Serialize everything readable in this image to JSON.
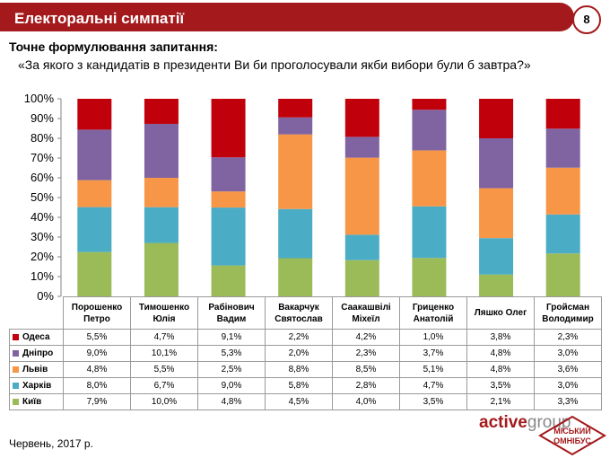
{
  "header": {
    "title": "Електоральні симпатії",
    "page_number": "8"
  },
  "question": {
    "label": "Точне формулювання запитання:",
    "text": "«За якого з кандидатів в президенти Ви би проголосували якби вибори були б завтра?»"
  },
  "chart_data": {
    "type": "bar",
    "stacked": "percent",
    "categories": [
      [
        "Порошенко",
        "Петро"
      ],
      [
        "Тимошенко",
        "Юлія"
      ],
      [
        "Рабінович",
        "Вадим"
      ],
      [
        "Вакарчук",
        "Святослав"
      ],
      [
        "Саакашвілі",
        "Міхеїл"
      ],
      [
        "Гриценко",
        "Анатолій"
      ],
      [
        "Ляшко Олег"
      ],
      [
        "Гройсман",
        "Володимир"
      ]
    ],
    "yticks": [
      "0%",
      "10%",
      "20%",
      "30%",
      "40%",
      "50%",
      "60%",
      "70%",
      "80%",
      "90%",
      "100%"
    ],
    "ylim": [
      0,
      100
    ],
    "series": [
      {
        "name": "Одеса",
        "color": "#c0000a",
        "values": [
          5.5,
          4.7,
          9.1,
          2.2,
          4.2,
          1.0,
          3.8,
          2.3
        ],
        "labels": [
          "5,5%",
          "4,7%",
          "9,1%",
          "2,2%",
          "4,2%",
          "1,0%",
          "3,8%",
          "2,3%"
        ]
      },
      {
        "name": "Дніпро",
        "color": "#8064a2",
        "values": [
          9.0,
          10.1,
          5.3,
          2.0,
          2.3,
          3.7,
          4.8,
          3.0
        ],
        "labels": [
          "9,0%",
          "10,1%",
          "5,3%",
          "2,0%",
          "2,3%",
          "3,7%",
          "4,8%",
          "3,0%"
        ]
      },
      {
        "name": "Львів",
        "color": "#f79646",
        "values": [
          4.8,
          5.5,
          2.5,
          8.8,
          8.5,
          5.1,
          4.8,
          3.6
        ],
        "labels": [
          "4,8%",
          "5,5%",
          "2,5%",
          "8,8%",
          "8,5%",
          "5,1%",
          "4,8%",
          "3,6%"
        ]
      },
      {
        "name": "Харків",
        "color": "#4bacc6",
        "values": [
          8.0,
          6.7,
          9.0,
          5.8,
          2.8,
          4.7,
          3.5,
          3.0
        ],
        "labels": [
          "8,0%",
          "6,7%",
          "9,0%",
          "5,8%",
          "2,8%",
          "4,7%",
          "3,5%",
          "3,0%"
        ]
      },
      {
        "name": "Київ",
        "color": "#9bbb59",
        "values": [
          7.9,
          10.0,
          4.8,
          4.5,
          4.0,
          3.5,
          2.1,
          3.3
        ],
        "labels": [
          "7,9%",
          "10,0%",
          "4,8%",
          "4,5%",
          "4,0%",
          "3,5%",
          "2,1%",
          "3,3%"
        ]
      }
    ],
    "grid": false
  },
  "footer": {
    "date": "Червень, 2017 р.",
    "brand_active": "active",
    "brand_group": "group",
    "logo_line1": "МІСЬКИЙ",
    "logo_line2": "ОМНІБУС"
  }
}
